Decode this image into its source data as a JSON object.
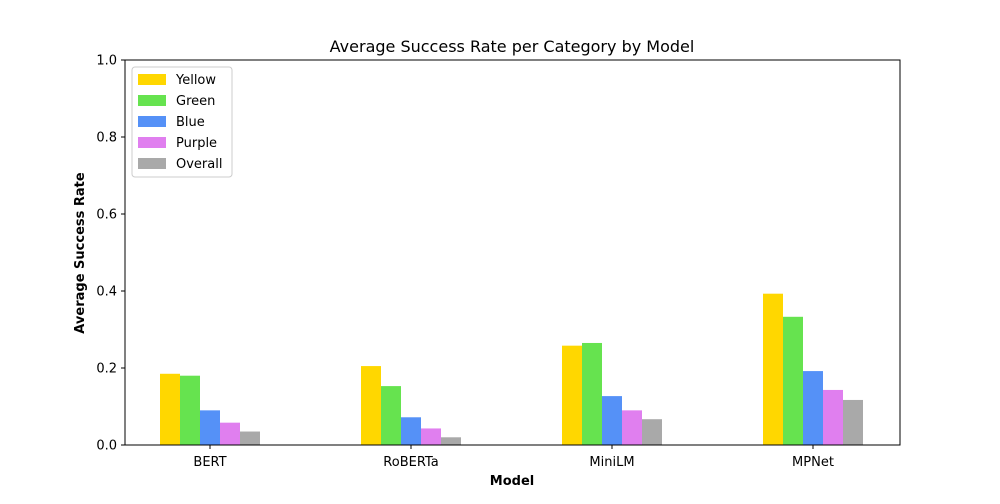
{
  "chart_data": {
    "type": "bar",
    "title": "Average Success Rate per Category by Model",
    "xlabel": "Model",
    "ylabel": "Average Success Rate",
    "ylim": [
      0,
      1.0
    ],
    "yticks": [
      "0.0",
      "0.2",
      "0.4",
      "0.6",
      "0.8",
      "1.0"
    ],
    "grid": false,
    "legend_position": "top-left",
    "categories": [
      "BERT",
      "RoBERTa",
      "MiniLM",
      "MPNet"
    ],
    "series": [
      {
        "name": "Yellow",
        "color": "#FFD700",
        "values": [
          0.185,
          0.205,
          0.258,
          0.393
        ]
      },
      {
        "name": "Green",
        "color": "#66E34F",
        "values": [
          0.18,
          0.153,
          0.265,
          0.333
        ]
      },
      {
        "name": "Blue",
        "color": "#5591F7",
        "values": [
          0.09,
          0.072,
          0.127,
          0.192
        ]
      },
      {
        "name": "Purple",
        "color": "#E07FEF",
        "values": [
          0.058,
          0.043,
          0.09,
          0.143
        ]
      },
      {
        "name": "Overall",
        "color": "#A9A9A9",
        "values": [
          0.035,
          0.02,
          0.067,
          0.117
        ]
      }
    ]
  }
}
